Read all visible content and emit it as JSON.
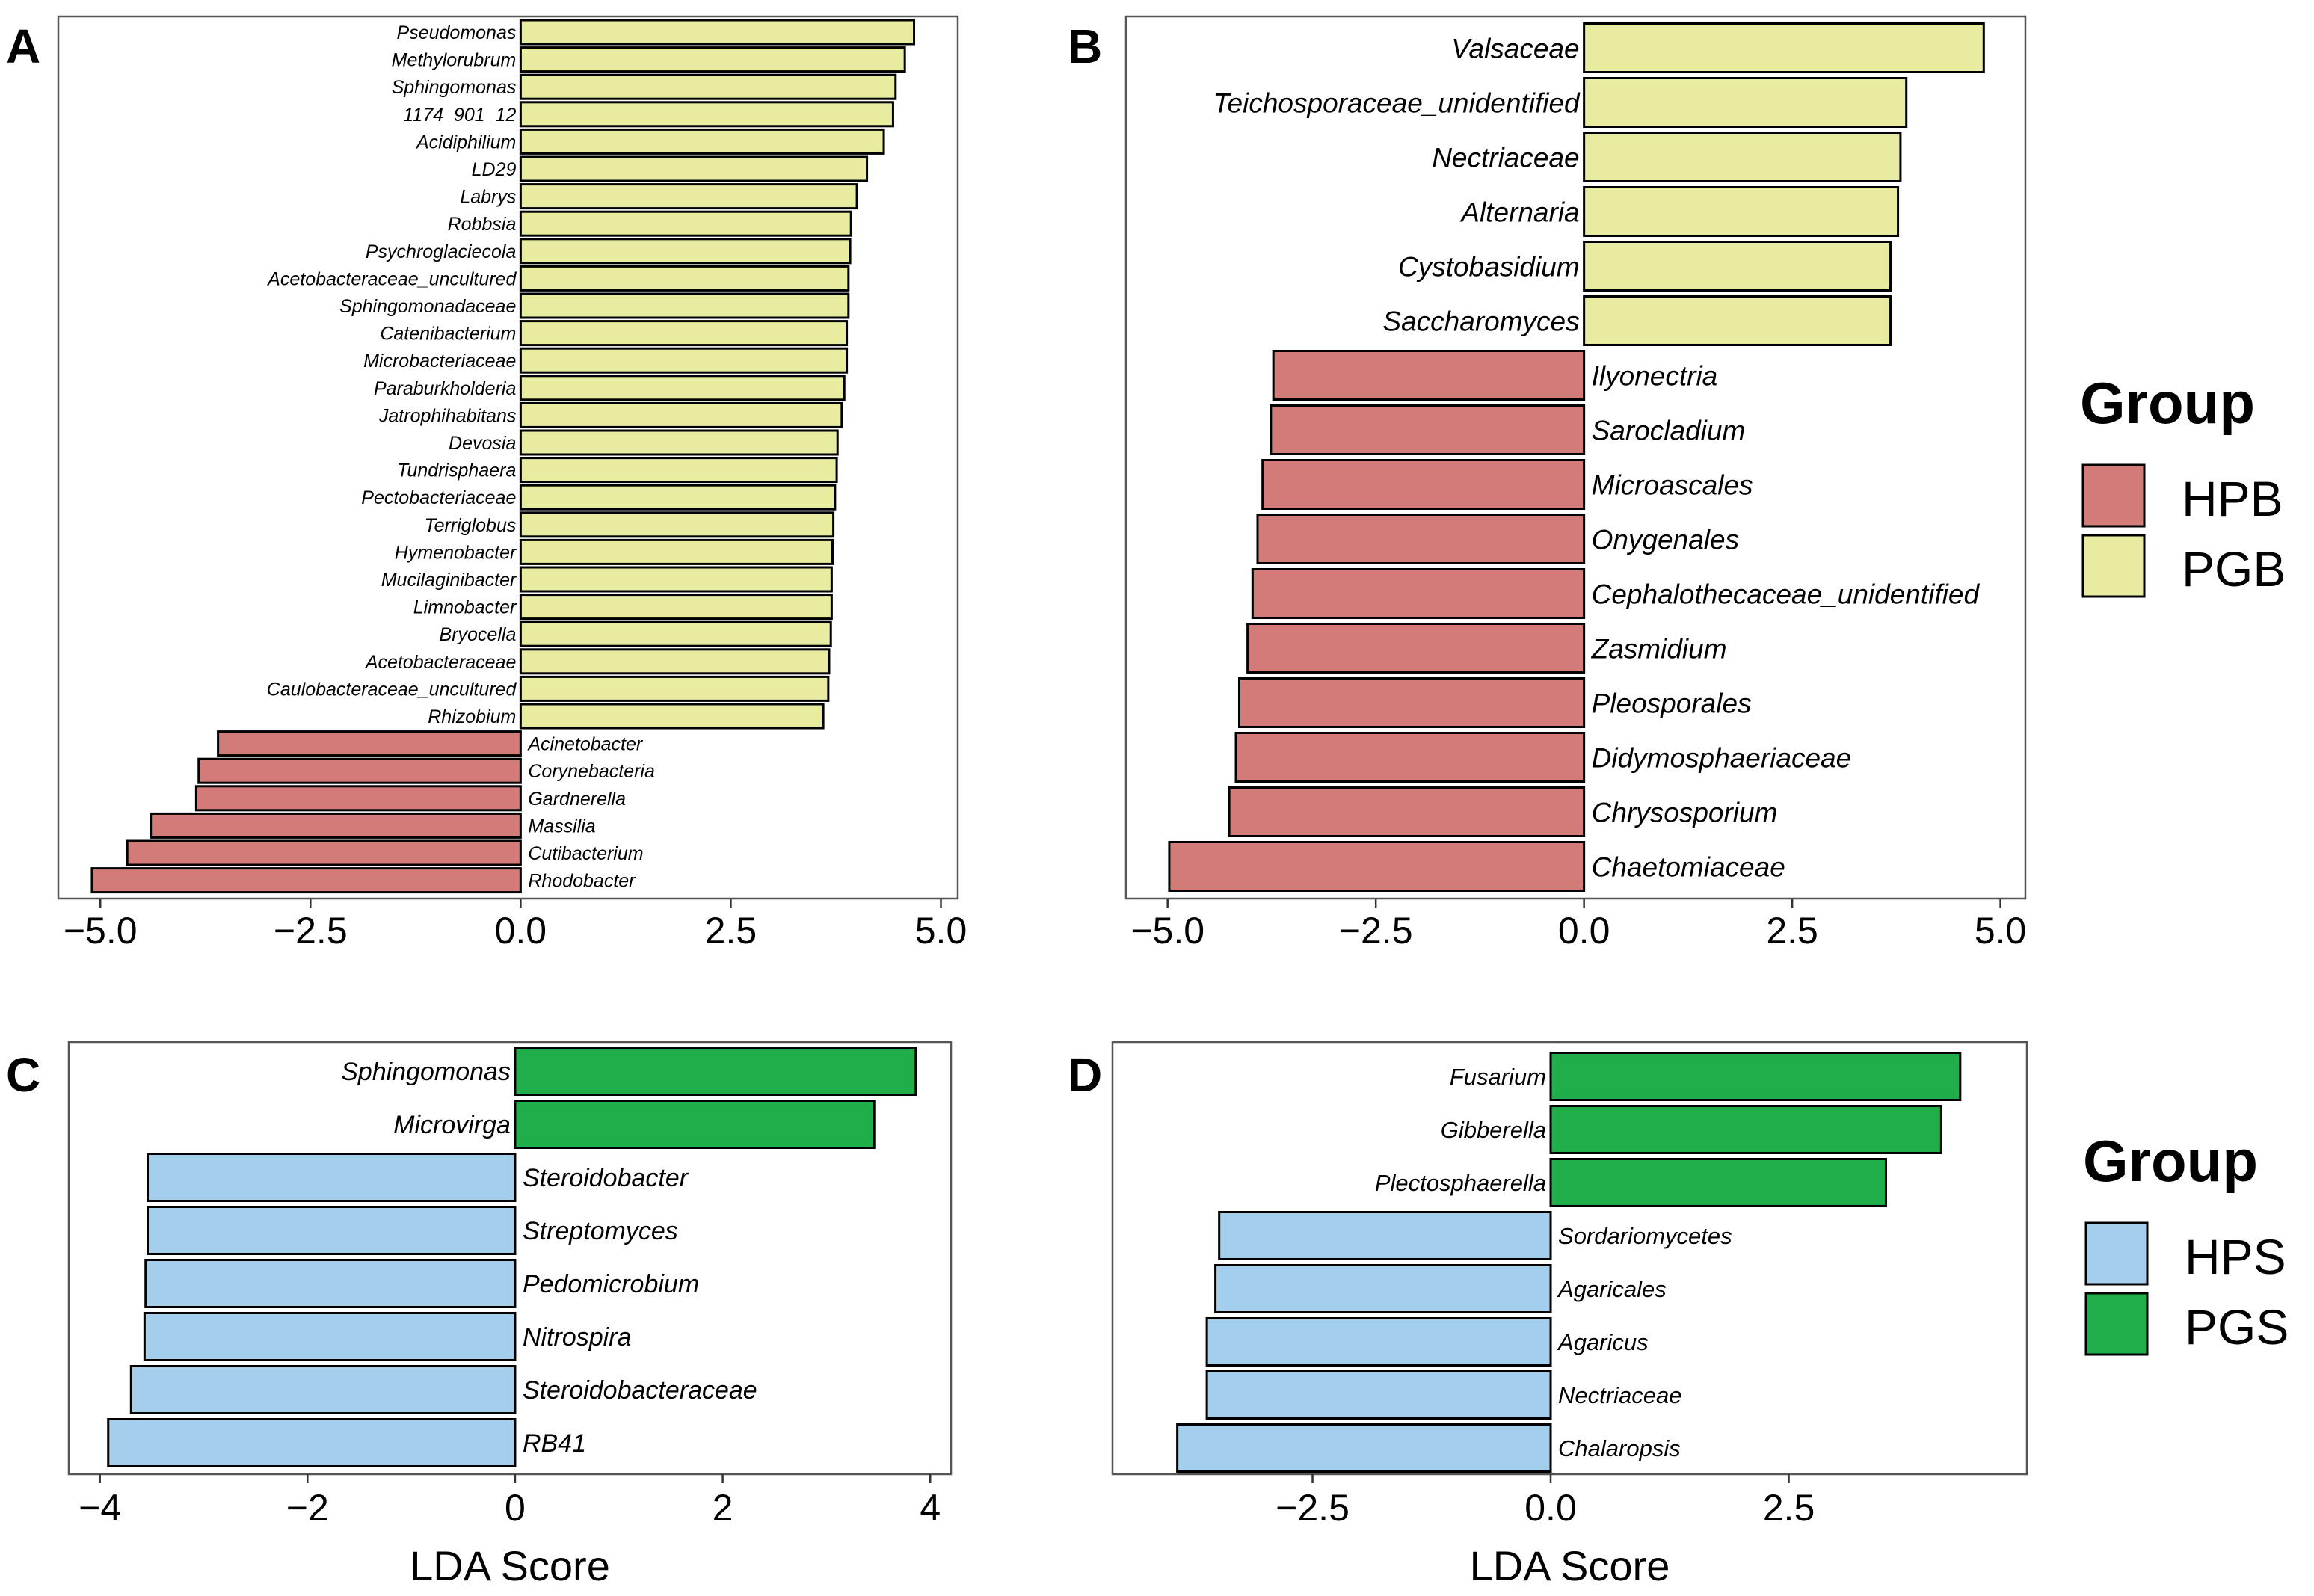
{
  "figure": {
    "panel_labels": [
      "A",
      "B",
      "C",
      "D"
    ],
    "legends": [
      {
        "title": "Group",
        "entries": [
          {
            "label": "HPB",
            "color": "#d27b78"
          },
          {
            "label": "PGB",
            "color": "#e8eca0"
          }
        ]
      },
      {
        "title": "Group",
        "entries": [
          {
            "label": "HPS",
            "color": "#a3cfec"
          },
          {
            "label": "PGS",
            "color": "#1fae4a"
          }
        ]
      }
    ]
  },
  "chart_data": [
    {
      "type": "bar",
      "orientation": "horizontal",
      "panel": "A",
      "xlabel": "",
      "xlim": [
        -5.5,
        5.2
      ],
      "xticks": [
        -5.0,
        -2.5,
        0.0,
        2.5,
        5.0
      ],
      "tick_labels": [
        "−5.0",
        "−2.5",
        "0.0",
        "2.5",
        "5.0"
      ],
      "categories": [
        "Pseudomonas",
        "Methylorubrum",
        "Sphingomonas",
        "1174_901_12",
        "Acidiphilium",
        "LD29",
        "Labrys",
        "Robbsia",
        "Psychroglaciecola",
        "Acetobacteraceae_uncultured",
        "Sphingomonadaceae",
        "Catenibacterium",
        "Microbacteriaceae",
        "Paraburkholderia",
        "Jatrophihabitans",
        "Devosia",
        "Tundrisphaera",
        "Pectobacteriaceae",
        "Terriglobus",
        "Hymenobacter",
        "Mucilaginibacter",
        "Limnobacter",
        "Bryocella",
        "Acetobacteraceae",
        "Caulobacteraceae_uncultured",
        "Rhizobium",
        "Acinetobacter",
        "Corynebacteria",
        "Gardnerella",
        "Massilia",
        "Cutibacterium",
        "Rhodobacter"
      ],
      "values": [
        4.68,
        4.57,
        4.46,
        4.43,
        4.32,
        4.12,
        4.0,
        3.93,
        3.92,
        3.9,
        3.9,
        3.88,
        3.88,
        3.85,
        3.82,
        3.77,
        3.76,
        3.74,
        3.72,
        3.71,
        3.7,
        3.7,
        3.69,
        3.67,
        3.66,
        3.6,
        -3.6,
        -3.83,
        -3.86,
        -4.4,
        -4.68,
        -5.1
      ],
      "groups": [
        "PGB",
        "PGB",
        "PGB",
        "PGB",
        "PGB",
        "PGB",
        "PGB",
        "PGB",
        "PGB",
        "PGB",
        "PGB",
        "PGB",
        "PGB",
        "PGB",
        "PGB",
        "PGB",
        "PGB",
        "PGB",
        "PGB",
        "PGB",
        "PGB",
        "PGB",
        "PGB",
        "PGB",
        "PGB",
        "PGB",
        "HPB",
        "HPB",
        "HPB",
        "HPB",
        "HPB",
        "HPB"
      ]
    },
    {
      "type": "bar",
      "orientation": "horizontal",
      "panel": "B",
      "xlabel": "",
      "xlim": [
        -5.5,
        5.3
      ],
      "xticks": [
        -5.0,
        -2.5,
        0.0,
        2.5,
        5.0
      ],
      "tick_labels": [
        "−5.0",
        "−2.5",
        "0.0",
        "2.5",
        "5.0"
      ],
      "categories": [
        "Valsaceae",
        "Teichosporaceae_unidentified",
        "Nectriaceae",
        "Alternaria",
        "Cystobasidium",
        "Saccharomyces",
        "Ilyonectria",
        "Sarocladium",
        "Microascales",
        "Onygenales",
        "Cephalothecaceae_unidentified",
        "Zasmidium",
        "Pleosporales",
        "Didymosphaeriaceae",
        "Chrysosporium",
        "Chaetomiaceae"
      ],
      "values": [
        4.8,
        3.87,
        3.8,
        3.77,
        3.68,
        3.68,
        -3.73,
        -3.76,
        -3.86,
        -3.92,
        -3.98,
        -4.04,
        -4.14,
        -4.18,
        -4.26,
        -4.98
      ],
      "groups": [
        "PGB",
        "PGB",
        "PGB",
        "PGB",
        "PGB",
        "PGB",
        "HPB",
        "HPB",
        "HPB",
        "HPB",
        "HPB",
        "HPB",
        "HPB",
        "HPB",
        "HPB",
        "HPB"
      ]
    },
    {
      "type": "bar",
      "orientation": "horizontal",
      "panel": "C",
      "xlabel": "LDA Score",
      "xlim": [
        -4.3,
        4.2
      ],
      "xticks": [
        -4,
        -2,
        0,
        2,
        4
      ],
      "tick_labels": [
        "−4",
        "−2",
        "0",
        "2",
        "4"
      ],
      "categories": [
        "Sphingomonas",
        "Microvirga",
        "Steroidobacter",
        "Streptomyces",
        "Pedomicrobium",
        "Nitrospira",
        "Steroidobacteraceae",
        "RB41"
      ],
      "values": [
        3.86,
        3.46,
        -3.54,
        -3.54,
        -3.56,
        -3.57,
        -3.7,
        -3.92
      ],
      "groups": [
        "PGS",
        "PGS",
        "HPS",
        "HPS",
        "HPS",
        "HPS",
        "HPS",
        "HPS"
      ]
    },
    {
      "type": "bar",
      "orientation": "horizontal",
      "panel": "D",
      "xlabel": "LDA Score",
      "xlim": [
        -4.6,
        5.0
      ],
      "xticks": [
        -2.5,
        0.0,
        2.5
      ],
      "tick_labels": [
        "−2.5",
        "0.0",
        "2.5"
      ],
      "categories": [
        "Fusarium",
        "Gibberella",
        "Plectosphaerella",
        "Sordariomycetes",
        "Agaricales",
        "Agaricus",
        "Nectriaceae",
        "Chalaropsis"
      ],
      "values": [
        4.3,
        4.1,
        3.52,
        -3.48,
        -3.52,
        -3.61,
        -3.61,
        -3.92
      ],
      "groups": [
        "PGS",
        "PGS",
        "PGS",
        "HPS",
        "HPS",
        "HPS",
        "HPS",
        "HPS"
      ]
    }
  ]
}
